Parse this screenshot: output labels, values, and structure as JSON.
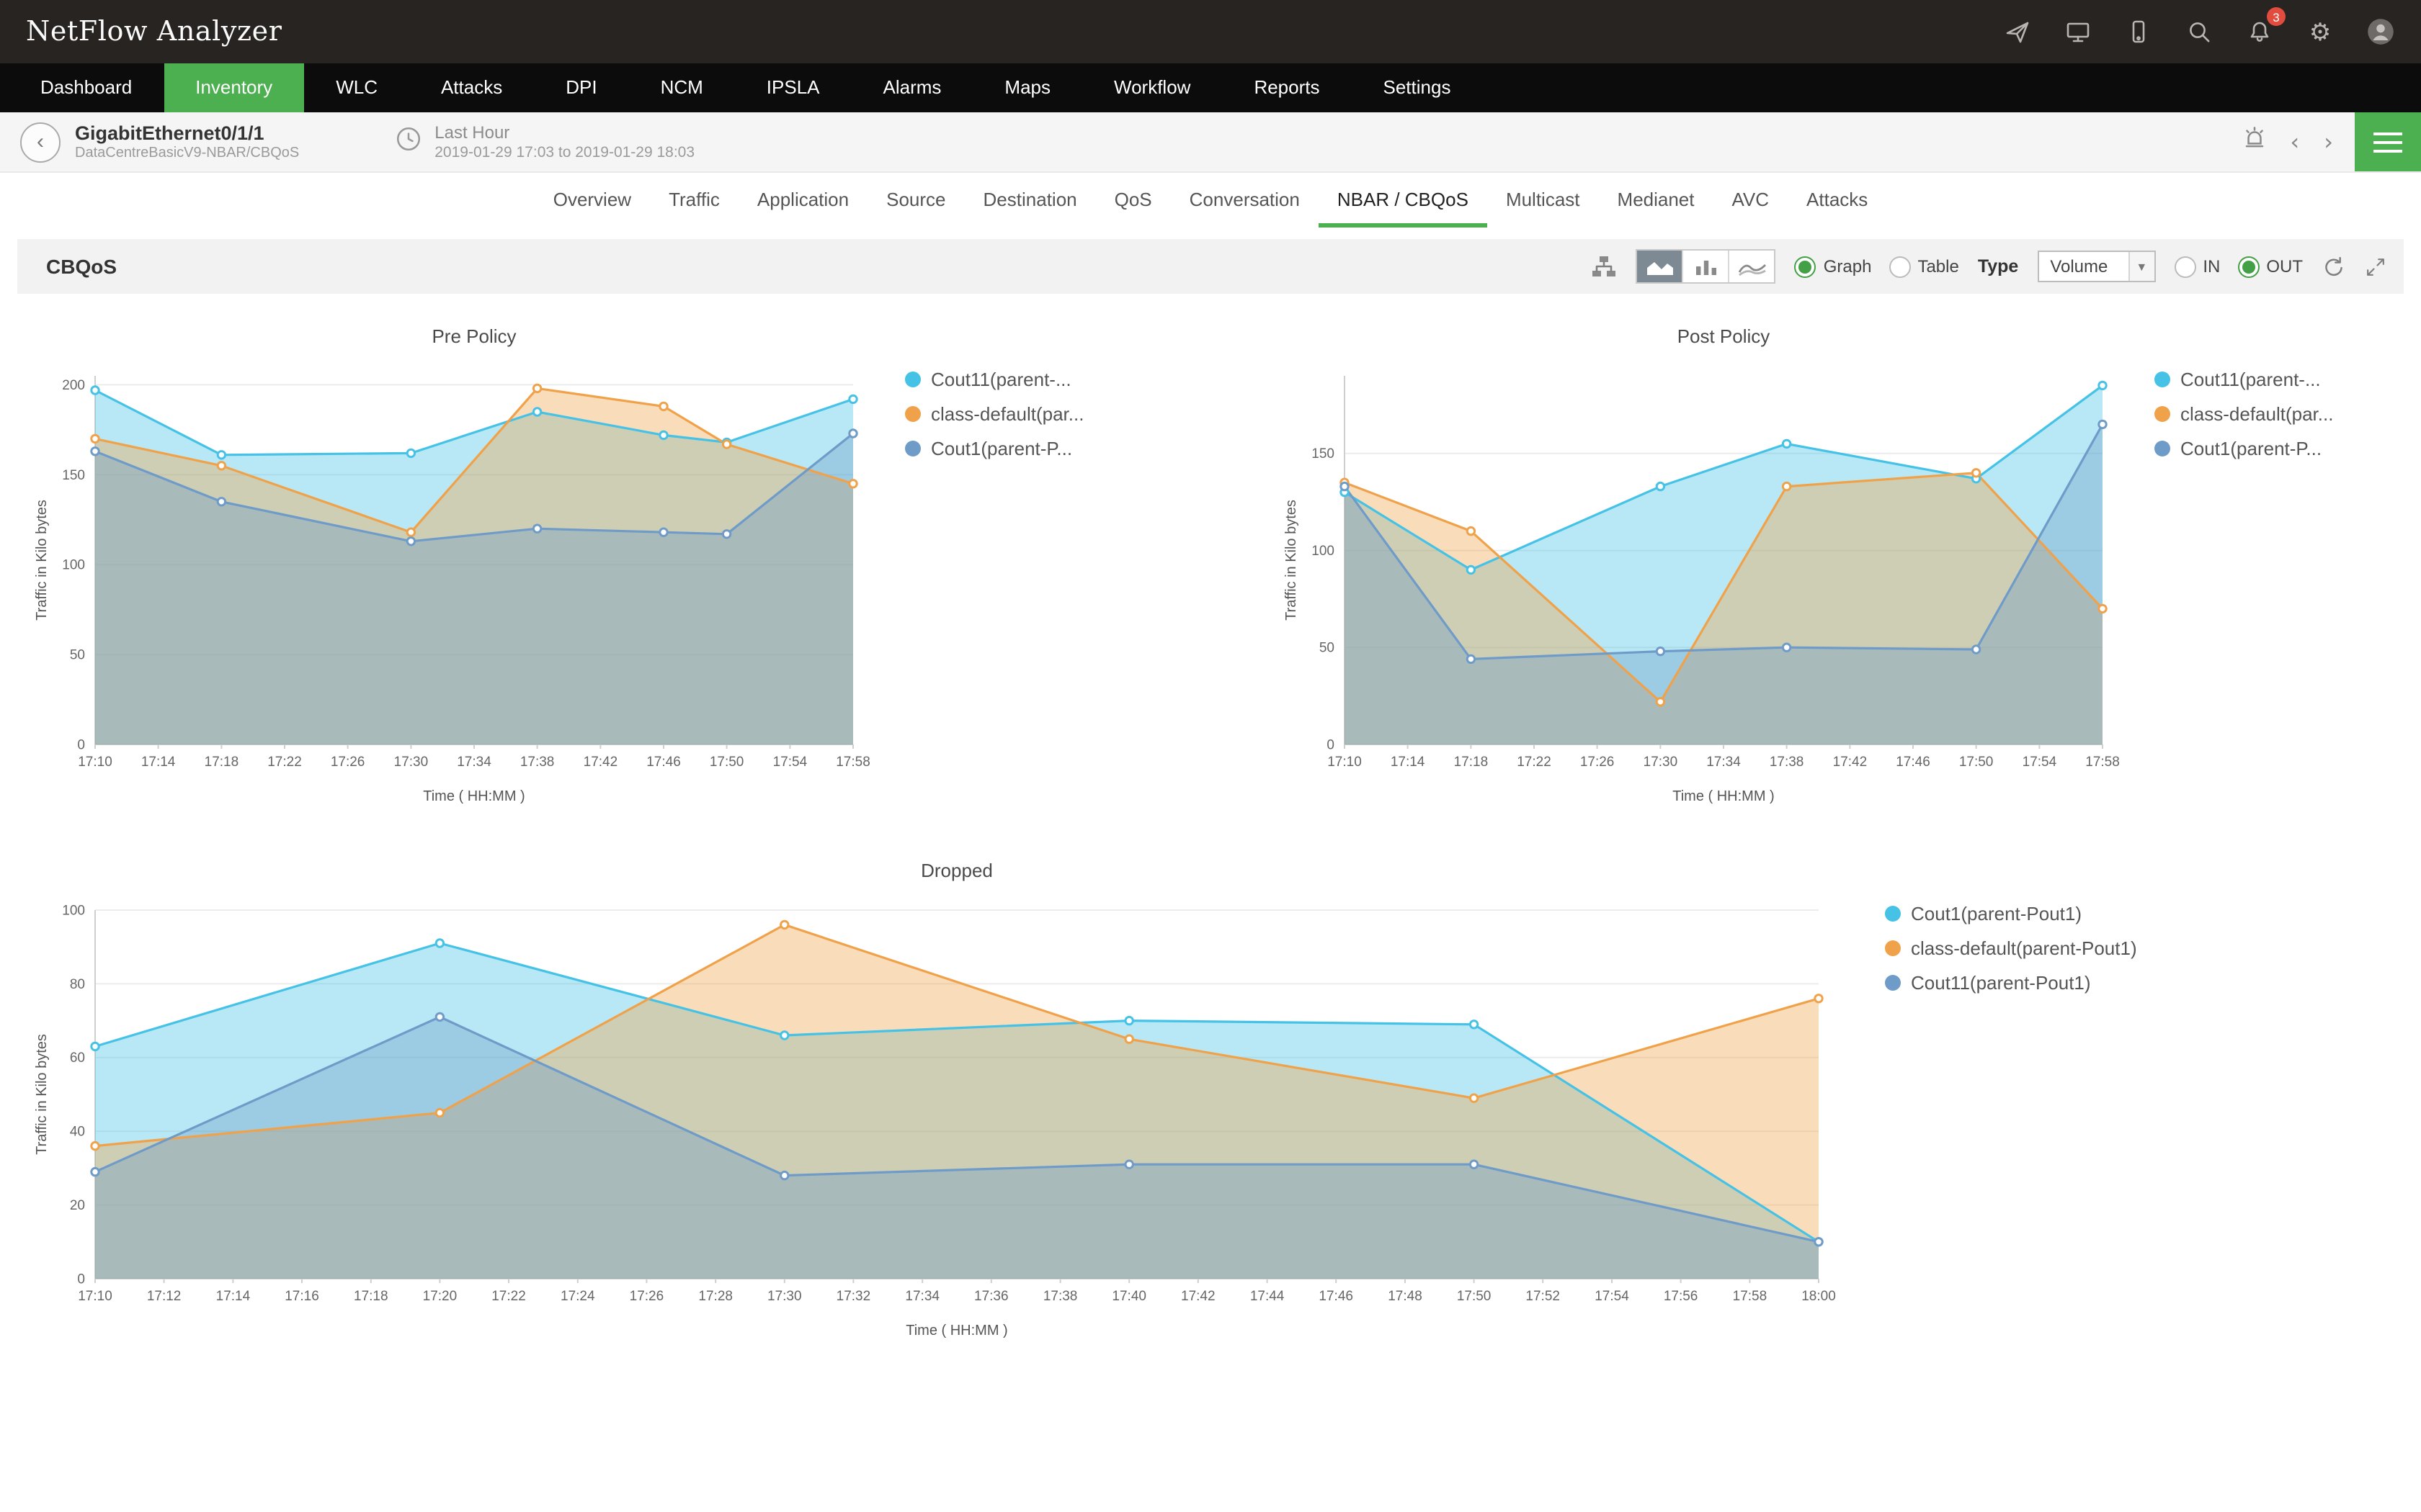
{
  "app": {
    "title": "NetFlow Analyzer",
    "notification_count": "3"
  },
  "header": {
    "icons": [
      "launch-icon",
      "demo-screen-icon",
      "mobile-icon",
      "search-icon",
      "notification-bell-icon",
      "settings-gear-icon",
      "user-avatar"
    ]
  },
  "nav": {
    "items": [
      {
        "label": "Dashboard",
        "active": false
      },
      {
        "label": "Inventory",
        "active": true
      },
      {
        "label": "WLC",
        "active": false
      },
      {
        "label": "Attacks",
        "active": false
      },
      {
        "label": "DPI",
        "active": false
      },
      {
        "label": "NCM",
        "active": false
      },
      {
        "label": "IPSLA",
        "active": false
      },
      {
        "label": "Alarms",
        "active": false
      },
      {
        "label": "Maps",
        "active": false
      },
      {
        "label": "Workflow",
        "active": false
      },
      {
        "label": "Reports",
        "active": false
      },
      {
        "label": "Settings",
        "active": false
      }
    ]
  },
  "breadcrumb": {
    "interface": "GigabitEthernet0/1/1",
    "path": "DataCentreBasicV9-NBAR/CBQoS",
    "time_label": "Last Hour",
    "time_range": "2019-01-29 17:03 to 2019-01-29 18:03"
  },
  "subnav": {
    "items": [
      {
        "label": "Overview",
        "active": false
      },
      {
        "label": "Traffic",
        "active": false
      },
      {
        "label": "Application",
        "active": false
      },
      {
        "label": "Source",
        "active": false
      },
      {
        "label": "Destination",
        "active": false
      },
      {
        "label": "QoS",
        "active": false
      },
      {
        "label": "Conversation",
        "active": false
      },
      {
        "label": "NBAR / CBQoS",
        "active": true
      },
      {
        "label": "Multicast",
        "active": false
      },
      {
        "label": "Medianet",
        "active": false
      },
      {
        "label": "AVC",
        "active": false
      },
      {
        "label": "Attacks",
        "active": false
      }
    ]
  },
  "toolbar": {
    "section_title": "CBQoS",
    "view_options": [
      {
        "label": "Graph",
        "selected": true
      },
      {
        "label": "Table",
        "selected": false
      }
    ],
    "type_label": "Type",
    "type_value": "Volume",
    "direction_options": [
      {
        "label": "IN",
        "selected": false
      },
      {
        "label": "OUT",
        "selected": true
      }
    ]
  },
  "colors": {
    "accent_green": "#4caf50",
    "badge_red": "#e24c3f",
    "series_cyan": "#45c2e6",
    "series_orange": "#f0a24a",
    "series_blue": "#6f9bc8"
  },
  "chart_data": [
    {
      "type": "area",
      "title": "Pre Policy",
      "xlabel": "Time ( HH:MM )",
      "ylabel": "Traffic in Kilo bytes",
      "x_ticks": [
        "17:10",
        "17:14",
        "17:18",
        "17:22",
        "17:26",
        "17:30",
        "17:34",
        "17:38",
        "17:42",
        "17:46",
        "17:50",
        "17:54",
        "17:58"
      ],
      "y_ticks": [
        0,
        50,
        100,
        150,
        200
      ],
      "ylim": [
        0,
        205
      ],
      "x": [
        "17:10",
        "17:18",
        "17:30",
        "17:38",
        "17:46",
        "17:50",
        "17:58"
      ],
      "series": [
        {
          "name": "Cout11(parent-...",
          "color": "#45c2e6",
          "values": [
            197,
            161,
            162,
            185,
            172,
            168,
            192
          ]
        },
        {
          "name": "class-default(par...",
          "color": "#f0a24a",
          "values": [
            170,
            155,
            118,
            198,
            188,
            167,
            145
          ]
        },
        {
          "name": "Cout1(parent-P...",
          "color": "#6f9bc8",
          "values": [
            163,
            135,
            113,
            120,
            118,
            117,
            173
          ]
        }
      ]
    },
    {
      "type": "area",
      "title": "Post Policy",
      "xlabel": "Time ( HH:MM )",
      "ylabel": "Traffic in Kilo bytes",
      "x_ticks": [
        "17:10",
        "17:14",
        "17:18",
        "17:22",
        "17:26",
        "17:30",
        "17:34",
        "17:38",
        "17:42",
        "17:46",
        "17:50",
        "17:54",
        "17:58"
      ],
      "y_ticks": [
        0,
        50,
        100,
        150
      ],
      "ylim": [
        0,
        190
      ],
      "x": [
        "17:10",
        "17:18",
        "17:30",
        "17:38",
        "17:50",
        "17:58"
      ],
      "series": [
        {
          "name": "Cout11(parent-...",
          "color": "#45c2e6",
          "values": [
            130,
            90,
            133,
            155,
            137,
            185
          ]
        },
        {
          "name": "class-default(par...",
          "color": "#f0a24a",
          "values": [
            135,
            110,
            22,
            133,
            140,
            70
          ]
        },
        {
          "name": "Cout1(parent-P...",
          "color": "#6f9bc8",
          "values": [
            133,
            44,
            48,
            50,
            49,
            165
          ]
        }
      ]
    },
    {
      "type": "area",
      "title": "Dropped",
      "xlabel": "Time ( HH:MM )",
      "ylabel": "Traffic in Kilo bytes",
      "x_ticks": [
        "17:10",
        "17:12",
        "17:14",
        "17:16",
        "17:18",
        "17:20",
        "17:22",
        "17:24",
        "17:26",
        "17:28",
        "17:30",
        "17:32",
        "17:34",
        "17:36",
        "17:38",
        "17:40",
        "17:42",
        "17:44",
        "17:46",
        "17:48",
        "17:50",
        "17:52",
        "17:54",
        "17:56",
        "17:58",
        "18:00"
      ],
      "y_ticks": [
        0,
        20,
        40,
        60,
        80,
        100
      ],
      "ylim": [
        0,
        100
      ],
      "x": [
        "17:10",
        "17:20",
        "17:30",
        "17:40",
        "17:50",
        "18:00"
      ],
      "series": [
        {
          "name": "Cout1(parent-Pout1)",
          "color": "#45c2e6",
          "values": [
            63,
            91,
            66,
            70,
            69,
            10
          ]
        },
        {
          "name": "class-default(parent-Pout1)",
          "color": "#f0a24a",
          "values": [
            36,
            45,
            96,
            65,
            49,
            76
          ]
        },
        {
          "name": "Cout11(parent-Pout1)",
          "color": "#6f9bc8",
          "values": [
            29,
            71,
            28,
            31,
            31,
            10
          ]
        }
      ]
    }
  ]
}
